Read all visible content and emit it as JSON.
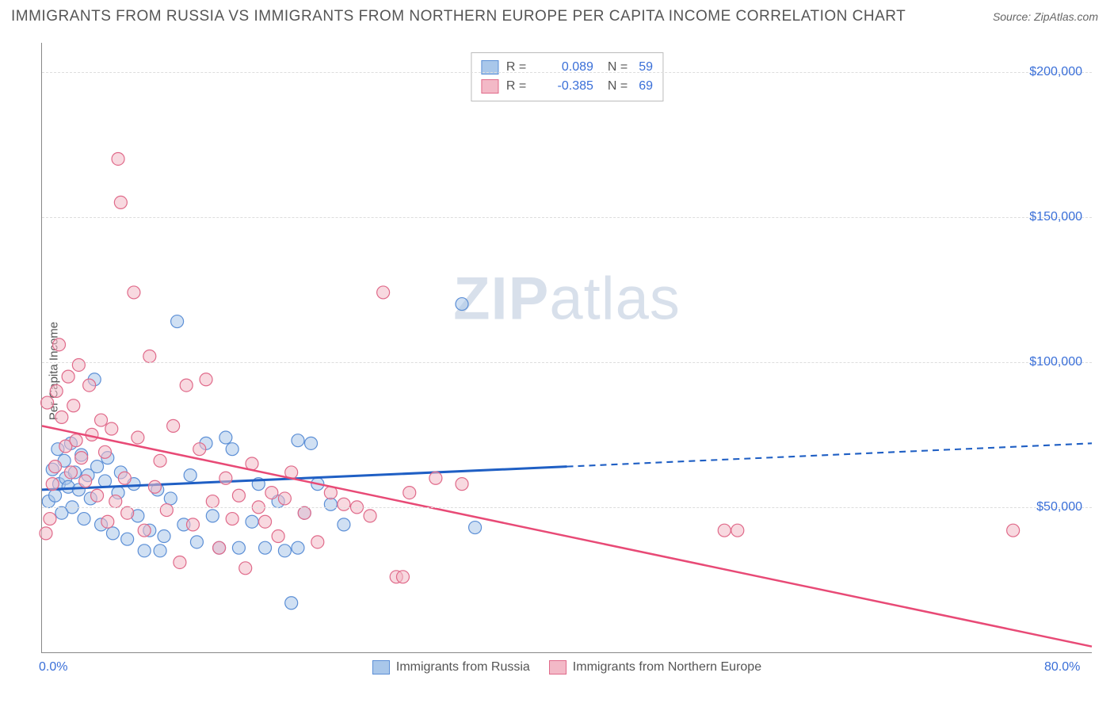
{
  "header": {
    "title": "IMMIGRANTS FROM RUSSIA VS IMMIGRANTS FROM NORTHERN EUROPE PER CAPITA INCOME CORRELATION CHART",
    "source_prefix": "Source: ",
    "source_name": "ZipAtlas.com"
  },
  "chart": {
    "type": "scatter",
    "ylabel": "Per Capita Income",
    "watermark_a": "ZIP",
    "watermark_b": "atlas",
    "xlim": [
      0,
      80
    ],
    "ylim": [
      0,
      210000
    ],
    "x_ticks": [
      {
        "v": 0,
        "label": "0.0%"
      },
      {
        "v": 80,
        "label": "80.0%"
      }
    ],
    "y_ticks": [
      {
        "v": 50000,
        "label": "$50,000"
      },
      {
        "v": 100000,
        "label": "$100,000"
      },
      {
        "v": 150000,
        "label": "$150,000"
      },
      {
        "v": 200000,
        "label": "$200,000"
      }
    ],
    "grid_color": "#dddddd",
    "grid_dash": "4,4",
    "background_color": "#ffffff",
    "axis_color": "#888888",
    "series": [
      {
        "id": "russia",
        "label": "Immigrants from Russia",
        "color_fill": "#a9c7ea",
        "color_stroke": "#5c8fd6",
        "marker_radius": 8,
        "fill_opacity": 0.55,
        "R": "0.089",
        "N": "59",
        "trend": {
          "color": "#1f5fc4",
          "width": 3,
          "solid_to_x": 40,
          "y_at_x0": 56000,
          "y_at_xmax": 72000,
          "dash_pattern": "8,6"
        },
        "points": [
          [
            0.5,
            52000
          ],
          [
            0.8,
            63000
          ],
          [
            1.0,
            54000
          ],
          [
            1.2,
            70000
          ],
          [
            1.3,
            58000
          ],
          [
            1.5,
            48000
          ],
          [
            1.7,
            66000
          ],
          [
            1.8,
            60000
          ],
          [
            2.0,
            57000
          ],
          [
            2.2,
            72000
          ],
          [
            2.3,
            50000
          ],
          [
            2.5,
            62000
          ],
          [
            2.8,
            56000
          ],
          [
            3.0,
            68000
          ],
          [
            3.2,
            46000
          ],
          [
            3.5,
            61000
          ],
          [
            3.7,
            53000
          ],
          [
            4.0,
            94000
          ],
          [
            4.2,
            64000
          ],
          [
            4.5,
            44000
          ],
          [
            4.8,
            59000
          ],
          [
            5.0,
            67000
          ],
          [
            5.4,
            41000
          ],
          [
            5.8,
            55000
          ],
          [
            6.0,
            62000
          ],
          [
            6.5,
            39000
          ],
          [
            7.0,
            58000
          ],
          [
            7.3,
            47000
          ],
          [
            7.8,
            35000
          ],
          [
            8.2,
            42000
          ],
          [
            8.8,
            56000
          ],
          [
            9.3,
            40000
          ],
          [
            9.8,
            53000
          ],
          [
            10.3,
            114000
          ],
          [
            10.8,
            44000
          ],
          [
            11.3,
            61000
          ],
          [
            11.8,
            38000
          ],
          [
            12.5,
            72000
          ],
          [
            13.0,
            47000
          ],
          [
            13.5,
            36000
          ],
          [
            14.0,
            74000
          ],
          [
            14.5,
            70000
          ],
          [
            15.0,
            36000
          ],
          [
            16.0,
            45000
          ],
          [
            16.5,
            58000
          ],
          [
            17.0,
            36000
          ],
          [
            18.0,
            52000
          ],
          [
            18.5,
            35000
          ],
          [
            19.0,
            17000
          ],
          [
            19.5,
            73000
          ],
          [
            19.5,
            36000
          ],
          [
            20.0,
            48000
          ],
          [
            20.5,
            72000
          ],
          [
            21.0,
            58000
          ],
          [
            22.0,
            51000
          ],
          [
            23.0,
            44000
          ],
          [
            9.0,
            35000
          ],
          [
            32.0,
            120000
          ],
          [
            33.0,
            43000
          ]
        ]
      },
      {
        "id": "neurope",
        "label": "Immigrants from Northern Europe",
        "color_fill": "#f3b9c7",
        "color_stroke": "#e06a8a",
        "marker_radius": 8,
        "fill_opacity": 0.55,
        "R": "-0.385",
        "N": "69",
        "trend": {
          "color": "#e84a76",
          "width": 2.5,
          "solid_to_x": 80,
          "y_at_x0": 78000,
          "y_at_xmax": 2000,
          "dash_pattern": ""
        },
        "points": [
          [
            0.4,
            86000
          ],
          [
            0.6,
            46000
          ],
          [
            0.8,
            58000
          ],
          [
            1.0,
            64000
          ],
          [
            1.1,
            90000
          ],
          [
            1.3,
            106000
          ],
          [
            1.5,
            81000
          ],
          [
            1.8,
            71000
          ],
          [
            2.0,
            95000
          ],
          [
            2.2,
            62000
          ],
          [
            2.4,
            85000
          ],
          [
            2.6,
            73000
          ],
          [
            2.8,
            99000
          ],
          [
            3.0,
            67000
          ],
          [
            3.3,
            59000
          ],
          [
            3.6,
            92000
          ],
          [
            3.8,
            75000
          ],
          [
            4.2,
            54000
          ],
          [
            4.5,
            80000
          ],
          [
            4.8,
            69000
          ],
          [
            5.0,
            45000
          ],
          [
            5.3,
            77000
          ],
          [
            5.6,
            52000
          ],
          [
            5.8,
            170000
          ],
          [
            6.0,
            155000
          ],
          [
            6.3,
            60000
          ],
          [
            6.5,
            48000
          ],
          [
            7.0,
            124000
          ],
          [
            7.3,
            74000
          ],
          [
            7.8,
            42000
          ],
          [
            8.2,
            102000
          ],
          [
            8.6,
            57000
          ],
          [
            9.0,
            66000
          ],
          [
            9.5,
            49000
          ],
          [
            10.0,
            78000
          ],
          [
            10.5,
            31000
          ],
          [
            11.0,
            92000
          ],
          [
            11.5,
            44000
          ],
          [
            12.0,
            70000
          ],
          [
            12.5,
            94000
          ],
          [
            13.0,
            52000
          ],
          [
            13.5,
            36000
          ],
          [
            14.0,
            60000
          ],
          [
            14.5,
            46000
          ],
          [
            15.0,
            54000
          ],
          [
            15.5,
            29000
          ],
          [
            16.0,
            65000
          ],
          [
            16.5,
            50000
          ],
          [
            17.0,
            45000
          ],
          [
            17.5,
            55000
          ],
          [
            18.0,
            40000
          ],
          [
            18.5,
            53000
          ],
          [
            19.0,
            62000
          ],
          [
            20.0,
            48000
          ],
          [
            21.0,
            38000
          ],
          [
            22.0,
            55000
          ],
          [
            23.0,
            51000
          ],
          [
            24.0,
            50000
          ],
          [
            25.0,
            47000
          ],
          [
            26.0,
            124000
          ],
          [
            27.0,
            26000
          ],
          [
            27.5,
            26000
          ],
          [
            28.0,
            55000
          ],
          [
            30.0,
            60000
          ],
          [
            32.0,
            58000
          ],
          [
            52.0,
            42000
          ],
          [
            53.0,
            42000
          ],
          [
            74.0,
            42000
          ],
          [
            0.3,
            41000
          ]
        ]
      }
    ]
  }
}
